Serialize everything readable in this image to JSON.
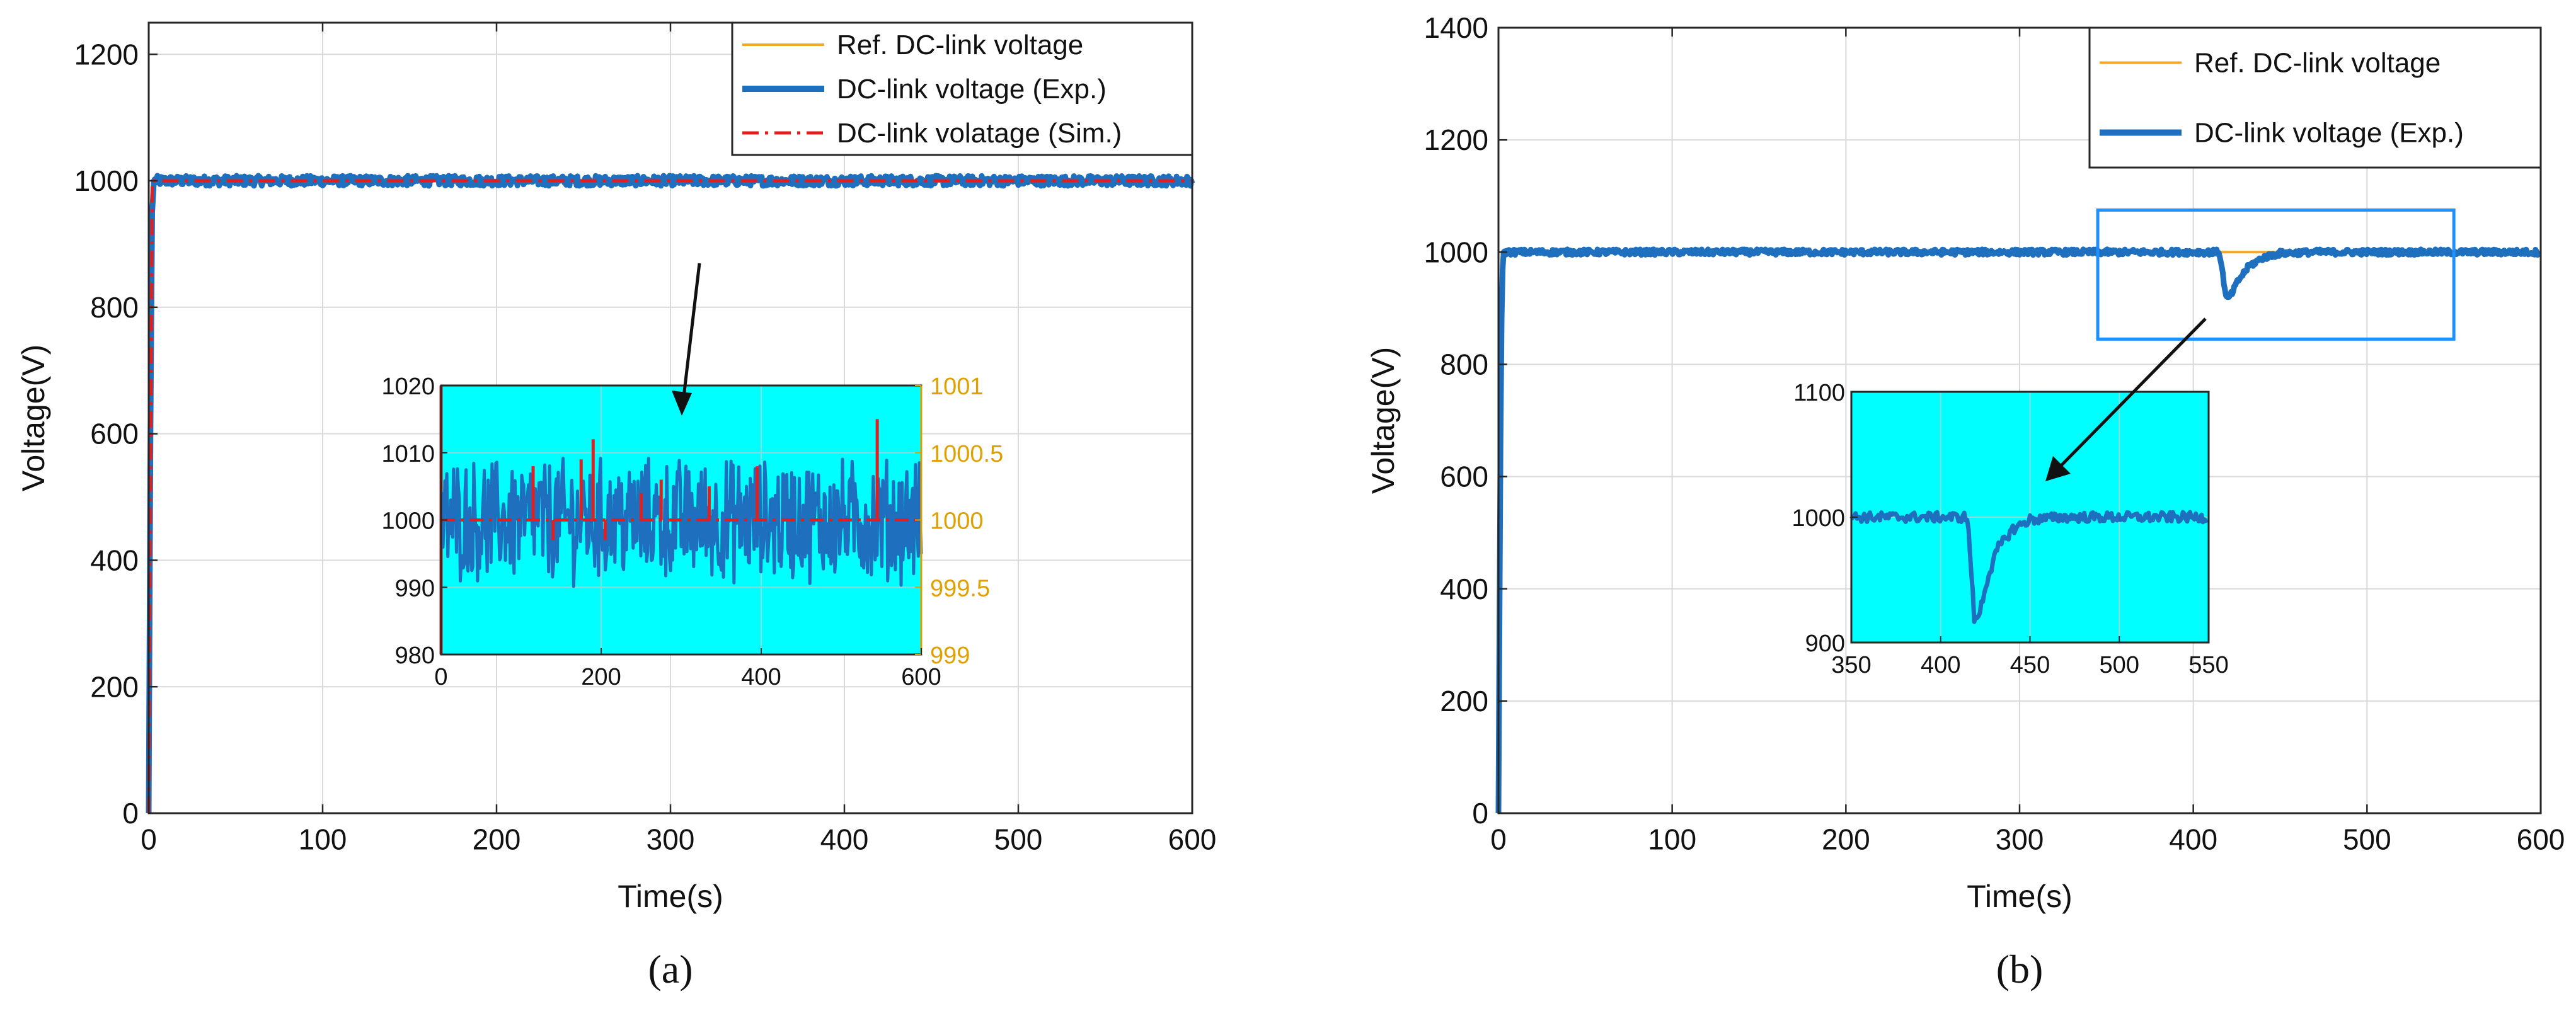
{
  "chart_data": [
    {
      "type": "line",
      "panel_label": "(a)",
      "xlabel": "Time(s)",
      "ylabel": "Voltage(V)",
      "xlim": [
        0,
        600
      ],
      "ylim": [
        0,
        1250
      ],
      "xticks": [
        0,
        100,
        200,
        300,
        400,
        500,
        600
      ],
      "yticks": [
        0,
        200,
        400,
        600,
        800,
        1000,
        1200
      ],
      "grid": true,
      "legend": {
        "position": "top-right",
        "entries": [
          "Ref. DC-link voltage",
          "DC-link voltage (Exp.)",
          "DC-link volatage (Sim.)"
        ]
      },
      "series": [
        {
          "name": "Ref. DC-link voltage",
          "color": "#F5A623",
          "style": "solid",
          "x": [
            0,
            2,
            600
          ],
          "y": [
            0,
            1000,
            1000
          ]
        },
        {
          "name": "DC-link voltage (Exp.)",
          "color": "#1F6FBF",
          "style": "solid-thick",
          "x": [
            0,
            1,
            2,
            3,
            600
          ],
          "y": [
            0,
            600,
            950,
            1000,
            1000
          ],
          "noise_amplitude": 8
        },
        {
          "name": "DC-link volatage (Sim.)",
          "color": "#E02020",
          "style": "dash-dot",
          "x": [
            0,
            2,
            600
          ],
          "y": [
            0,
            1000,
            1000
          ]
        }
      ],
      "inset": {
        "xlim": [
          0,
          600
        ],
        "ylim_left": [
          980,
          1020
        ],
        "ylim_right": [
          999,
          1001
        ],
        "xticks": [
          0,
          200,
          400,
          600
        ],
        "yticks_left": [
          980,
          990,
          1000,
          1010,
          1020
        ],
        "yticks_right": [
          "999",
          "999.5",
          "1000",
          "1000.5",
          "1001"
        ],
        "background": "#00FFFF",
        "exp_noise_amplitude": 8,
        "sim_spikes": [
          {
            "x": 115,
            "y": 1008
          },
          {
            "x": 140,
            "y": 997
          },
          {
            "x": 175,
            "y": 1009
          },
          {
            "x": 190,
            "y": 1012
          },
          {
            "x": 205,
            "y": 997
          },
          {
            "x": 250,
            "y": 1004
          },
          {
            "x": 275,
            "y": 1006
          },
          {
            "x": 335,
            "y": 1005
          },
          {
            "x": 395,
            "y": 1008
          },
          {
            "x": 545,
            "y": 1015
          }
        ]
      }
    },
    {
      "type": "line",
      "panel_label": "(b)",
      "xlabel": "Time(s)",
      "ylabel": "Voltage(V)",
      "xlim": [
        0,
        600
      ],
      "ylim": [
        0,
        1400
      ],
      "xticks": [
        0,
        100,
        200,
        300,
        400,
        500,
        600
      ],
      "yticks": [
        0,
        200,
        400,
        600,
        800,
        1000,
        1200,
        1400
      ],
      "grid": true,
      "legend": {
        "position": "top-right",
        "entries": [
          "Ref. DC-link voltage",
          "DC-link voltage (Exp.)"
        ]
      },
      "series": [
        {
          "name": "Ref. DC-link voltage",
          "color": "#F5A623",
          "style": "solid",
          "x": [
            0,
            2,
            600
          ],
          "y": [
            0,
            1000,
            1000
          ]
        },
        {
          "name": "DC-link voltage (Exp.)",
          "color": "#1F6FBF",
          "style": "solid-thick",
          "x": [
            0,
            1,
            2,
            3,
            415,
            417,
            419,
            422,
            426,
            432,
            440,
            450,
            470,
            600
          ],
          "y": [
            0,
            600,
            950,
            1000,
            1000,
            960,
            915,
            925,
            950,
            975,
            990,
            998,
            1000,
            1000
          ],
          "noise_amplitude": 5
        }
      ],
      "zoom_box": {
        "x_range": [
          345,
          550
        ],
        "y_range": [
          845,
          1075
        ]
      },
      "inset": {
        "xlim": [
          350,
          550
        ],
        "ylim": [
          900,
          1100
        ],
        "xticks": [
          350,
          400,
          450,
          500,
          550
        ],
        "yticks": [
          900,
          1000,
          1100
        ],
        "background": "#00FFFF",
        "x": [
          350,
          415,
          417,
          419,
          422,
          426,
          432,
          440,
          450,
          470,
          550
        ],
        "y": [
          1000,
          1000,
          960,
          915,
          925,
          950,
          975,
          990,
          998,
          1000,
          1000
        ],
        "noise_amplitude": 4
      }
    }
  ]
}
